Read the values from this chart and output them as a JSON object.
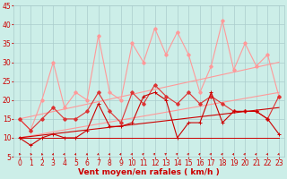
{
  "x": [
    0,
    1,
    2,
    3,
    4,
    5,
    6,
    7,
    8,
    9,
    10,
    11,
    12,
    13,
    14,
    15,
    16,
    17,
    18,
    19,
    20,
    21,
    22,
    23
  ],
  "pink_spiky": [
    15,
    12,
    20,
    30,
    18,
    22,
    20,
    37,
    22,
    20,
    35,
    30,
    39,
    32,
    38,
    32,
    22,
    29,
    41,
    28,
    35,
    29,
    32,
    21
  ],
  "red_line1": [
    10,
    8,
    10,
    11,
    10,
    10,
    12,
    19,
    13,
    13,
    14,
    21,
    22,
    20,
    10,
    14,
    14,
    22,
    14,
    17,
    17,
    17,
    15,
    11
  ],
  "red_line2": [
    15,
    12,
    15,
    18,
    15,
    15,
    17,
    22,
    17,
    14,
    22,
    19,
    24,
    21,
    19,
    22,
    19,
    21,
    19,
    17,
    17,
    17,
    15,
    21
  ],
  "flat_line": [
    10,
    10,
    10,
    10,
    10,
    10,
    10,
    10,
    10,
    10,
    10,
    10,
    10,
    10,
    10,
    10,
    10,
    10,
    10,
    10,
    10,
    10,
    10,
    10
  ],
  "trend_pink_lo": [
    10.0,
    10.52,
    11.04,
    11.57,
    12.09,
    12.61,
    13.13,
    13.65,
    14.17,
    14.7,
    15.22,
    15.74,
    16.26,
    16.78,
    17.3,
    17.83,
    18.35,
    18.87,
    19.39,
    19.91,
    20.43,
    20.96,
    21.48,
    22.0
  ],
  "trend_pink_hi": [
    15.0,
    15.65,
    16.3,
    16.96,
    17.61,
    18.26,
    18.91,
    19.57,
    20.22,
    20.87,
    21.52,
    22.17,
    22.83,
    23.48,
    24.13,
    24.78,
    25.43,
    26.09,
    26.74,
    27.39,
    28.04,
    28.7,
    29.35,
    30.0
  ],
  "trend_red": [
    10.0,
    10.35,
    10.7,
    11.04,
    11.39,
    11.74,
    12.09,
    12.43,
    12.78,
    13.13,
    13.48,
    13.83,
    14.17,
    14.52,
    14.87,
    15.22,
    15.57,
    15.91,
    16.26,
    16.61,
    16.96,
    17.3,
    17.65,
    18.0
  ],
  "bg_color": "#cceee8",
  "grid_color": "#aacccc",
  "pink_color": "#ff9999",
  "red_dark": "#cc0000",
  "red_mid": "#dd3333",
  "xlabel": "Vent moyen/en rafales ( km/h )",
  "ylim": [
    5,
    45
  ],
  "xlim": [
    -0.5,
    23.5
  ],
  "yticks": [
    5,
    10,
    15,
    20,
    25,
    30,
    35,
    40,
    45
  ],
  "xticks": [
    0,
    1,
    2,
    3,
    4,
    5,
    6,
    7,
    8,
    9,
    10,
    11,
    12,
    13,
    14,
    15,
    16,
    17,
    18,
    19,
    20,
    21,
    22,
    23
  ],
  "xlabel_fontsize": 6.5,
  "tick_fontsize": 5.5,
  "arrow_angles": [
    -30,
    -25,
    -10,
    10,
    20,
    15,
    5,
    10,
    15,
    25,
    30,
    35,
    40,
    45,
    40,
    35,
    30,
    35,
    30,
    25,
    30,
    25,
    20,
    15
  ]
}
